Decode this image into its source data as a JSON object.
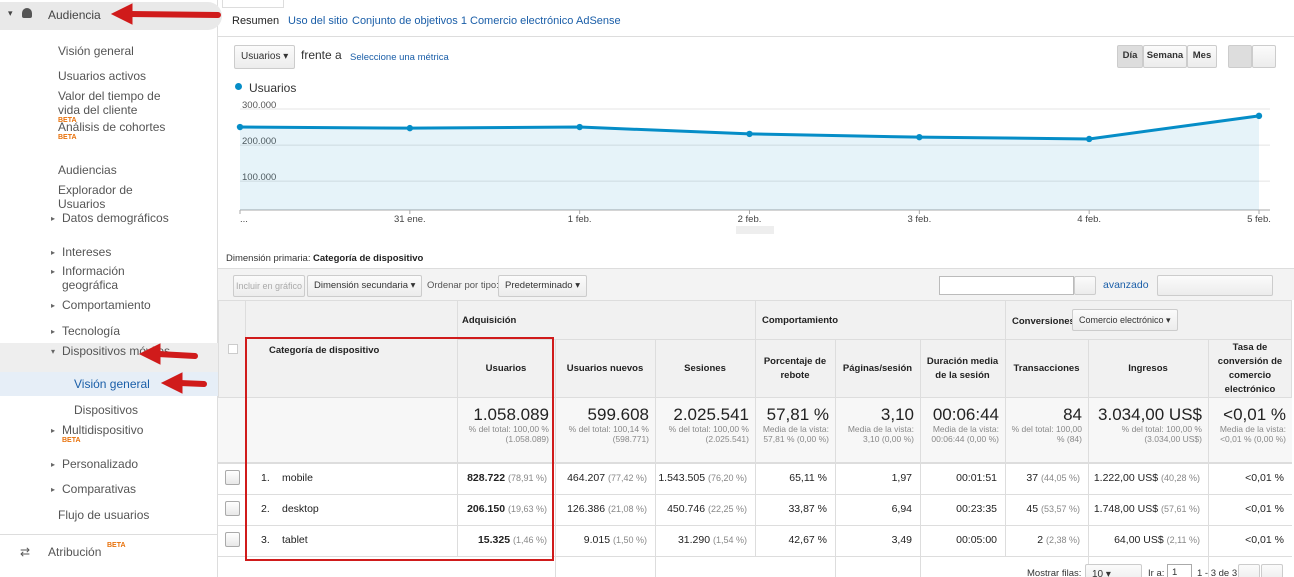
{
  "sidebar": {
    "section": "Audiencia",
    "items": [
      {
        "label": "Visión general"
      },
      {
        "label": "Usuarios activos"
      },
      {
        "label": "Valor del tiempo de vida del cliente",
        "badge": "BETA"
      },
      {
        "label": "Análisis de cohortes",
        "badge": "BETA"
      },
      {
        "label": "Audiencias"
      },
      {
        "label": "Explorador de Usuarios"
      },
      {
        "label": "Datos demográficos"
      },
      {
        "label": "Intereses"
      },
      {
        "label": "Información geográfica"
      },
      {
        "label": "Comportamiento"
      },
      {
        "label": "Tecnología"
      },
      {
        "label": "Dispositivos móviles"
      },
      {
        "label": "Visión general"
      },
      {
        "label": "Dispositivos"
      },
      {
        "label": "Multidispositivo",
        "badge": "BETA"
      },
      {
        "label": "Personalizado"
      },
      {
        "label": "Comparativas"
      },
      {
        "label": "Flujo de usuarios"
      }
    ],
    "footer": {
      "label": "Atribución",
      "badge": "BETA"
    }
  },
  "tabs": [
    "Resumen",
    "Uso del sitio",
    "Conjunto de objetivos 1",
    "Comercio electrónico",
    "AdSense"
  ],
  "controls": {
    "metric": "Usuarios",
    "versus": "frente a",
    "select_metric": "Seleccione una métrica",
    "periods": [
      "Día",
      "Semana",
      "Mes"
    ]
  },
  "chart_data": {
    "type": "line",
    "categories": [
      "...",
      "31 ene.",
      "1 feb.",
      "2 feb.",
      "3 feb.",
      "4 feb.",
      "5 feb."
    ],
    "series": [
      {
        "name": "Usuarios",
        "color": "#058dc7",
        "values": [
          250000,
          247000,
          250000,
          231000,
          222000,
          217000,
          281000
        ]
      }
    ],
    "ylim": [
      20000,
      325000
    ],
    "yticks": [
      {
        "value": 100000,
        "label": "100.000"
      },
      {
        "value": 200000,
        "label": "200.000"
      },
      {
        "value": 300000,
        "label": "300.000"
      }
    ],
    "grid": true
  },
  "table_controls": {
    "primary_label": "Dimensión primaria:",
    "primary_value": "Categoría de dispositivo",
    "include": "Incluir en gráfico",
    "secondary": "Dimensión secundaria",
    "sort_label": "Ordenar por tipo:",
    "sort_value": "Predeterminado",
    "advanced": "avanzado"
  },
  "table": {
    "groups": [
      "Adquisición",
      "Comportamiento",
      "Conversiones"
    ],
    "conversion_select": "Comercio electrónico",
    "columns": [
      "Categoría de dispositivo",
      "Usuarios",
      "Usuarios nuevos",
      "Sesiones",
      "Porcentaje de rebote",
      "Páginas/sesión",
      "Duración media de la sesión",
      "Transacciones",
      "Ingresos",
      "Tasa de conversión de comercio electrónico"
    ],
    "totals": [
      {
        "value": "1.058.089",
        "note": "% del total: 100,00 % (1.058.089)"
      },
      {
        "value": "599.608",
        "note": "% del total: 100,14 % (598.771)"
      },
      {
        "value": "2.025.541",
        "note": "% del total: 100,00 % (2.025.541)"
      },
      {
        "value": "57,81 %",
        "note": "Media de la vista: 57,81 % (0,00 %)"
      },
      {
        "value": "3,10",
        "note": "Media de la vista: 3,10 (0,00 %)"
      },
      {
        "value": "00:06:44",
        "note": "Media de la vista: 00:06:44 (0,00 %)"
      },
      {
        "value": "84",
        "note": "% del total: 100,00 % (84)"
      },
      {
        "value": "3.034,00 US$",
        "note": "% del total: 100,00 % (3.034,00 US$)"
      },
      {
        "value": "<0,01 %",
        "note": "Media de la vista: <0,01 % (0,00 %)"
      }
    ],
    "rows": [
      {
        "rank": "1.",
        "name": "mobile",
        "cells": [
          {
            "value": "828.722",
            "pct": "(78,91 %)"
          },
          {
            "value": "464.207",
            "pct": "(77,42 %)"
          },
          {
            "value": "1.543.505",
            "pct": "(76,20 %)"
          },
          {
            "value": "65,11 %"
          },
          {
            "value": "1,97"
          },
          {
            "value": "00:01:51"
          },
          {
            "value": "37",
            "pct": "(44,05 %)"
          },
          {
            "value": "1.222,00 US$",
            "pct": "(40,28 %)"
          },
          {
            "value": "<0,01 %"
          }
        ]
      },
      {
        "rank": "2.",
        "name": "desktop",
        "cells": [
          {
            "value": "206.150",
            "pct": "(19,63 %)"
          },
          {
            "value": "126.386",
            "pct": "(21,08 %)"
          },
          {
            "value": "450.746",
            "pct": "(22,25 %)"
          },
          {
            "value": "33,87 %"
          },
          {
            "value": "6,94"
          },
          {
            "value": "00:23:35"
          },
          {
            "value": "45",
            "pct": "(53,57 %)"
          },
          {
            "value": "1.748,00 US$",
            "pct": "(57,61 %)"
          },
          {
            "value": "<0,01 %"
          }
        ]
      },
      {
        "rank": "3.",
        "name": "tablet",
        "cells": [
          {
            "value": "15.325",
            "pct": "(1,46 %)"
          },
          {
            "value": "9.015",
            "pct": "(1,50 %)"
          },
          {
            "value": "31.290",
            "pct": "(1,54 %)"
          },
          {
            "value": "42,67 %"
          },
          {
            "value": "3,49"
          },
          {
            "value": "00:05:00"
          },
          {
            "value": "2",
            "pct": "(2,38 %)"
          },
          {
            "value": "64,00 US$",
            "pct": "(2,11 %)"
          },
          {
            "value": "<0,01 %"
          }
        ]
      }
    ]
  },
  "pager": {
    "rows_label": "Mostrar filas:",
    "rows_value": "10",
    "goto_label": "Ir a:",
    "goto_value": "1",
    "range": "1 - 3 de 3"
  }
}
